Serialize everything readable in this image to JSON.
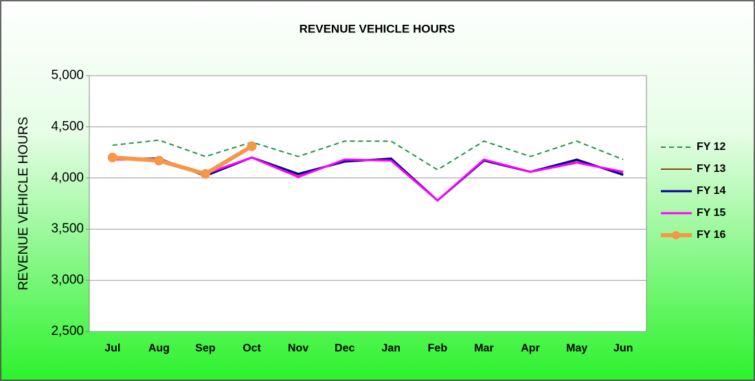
{
  "chart_data": {
    "type": "line",
    "title": "REVENUE VEHICLE HOURS",
    "y_label": "REVENUE VEHICLE HOURS",
    "categories": [
      "Jul",
      "Aug",
      "Sep",
      "Oct",
      "Nov",
      "Dec",
      "Jan",
      "Feb",
      "Mar",
      "Apr",
      "May",
      "Jun"
    ],
    "series": [
      {
        "name": "FY 12",
        "color": "#1a9641",
        "dash": true,
        "line_width": 2,
        "marker": false,
        "values": [
          4320,
          4370,
          4210,
          4350,
          4210,
          4360,
          4360,
          4080,
          4360,
          4210,
          4360,
          4180
        ]
      },
      {
        "name": "FY 13",
        "color": "#8b4513",
        "dash": false,
        "line_width": 2,
        "marker": false,
        "values": [
          4190,
          4190,
          4030,
          4200,
          4030,
          4170,
          4180,
          3780,
          4170,
          4060,
          4170,
          4040
        ]
      },
      {
        "name": "FY 14",
        "color": "#00008b",
        "dash": false,
        "line_width": 3,
        "marker": false,
        "values": [
          4190,
          4190,
          4020,
          4200,
          4040,
          4160,
          4190,
          3780,
          4170,
          4060,
          4180,
          4030
        ]
      },
      {
        "name": "FY 15",
        "color": "#ff00ff",
        "dash": false,
        "line_width": 3,
        "marker": false,
        "values": [
          4180,
          4180,
          4040,
          4200,
          4010,
          4180,
          4170,
          3780,
          4180,
          4060,
          4150,
          4060
        ]
      },
      {
        "name": "FY 16",
        "color": "#f79646",
        "dash": false,
        "line_width": 6,
        "marker": true,
        "values": [
          4200,
          4170,
          4040,
          4310,
          null,
          null,
          null,
          null,
          null,
          null,
          null,
          null
        ]
      }
    ],
    "ylim": [
      2500,
      5000
    ],
    "yticks": [
      {
        "value": 2500,
        "label": "2,500"
      },
      {
        "value": 3000,
        "label": "3,000"
      },
      {
        "value": 3500,
        "label": "3,500"
      },
      {
        "value": 4000,
        "label": "4,000"
      },
      {
        "value": 4500,
        "label": "4,500"
      },
      {
        "value": 5000,
        "label": "5,000"
      }
    ],
    "grid": true,
    "legend": "right"
  }
}
